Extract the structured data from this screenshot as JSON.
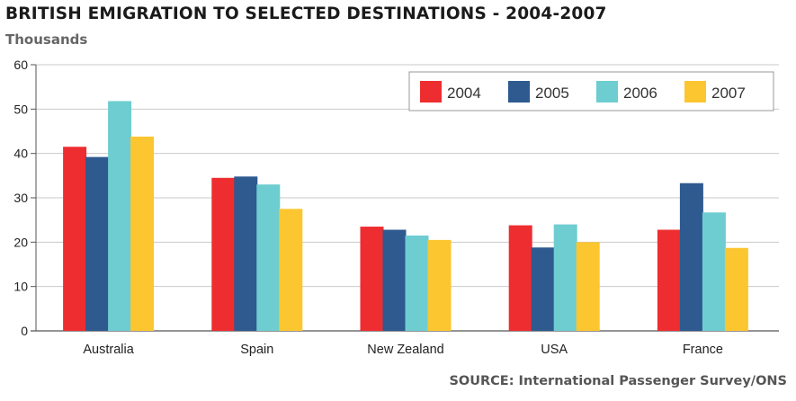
{
  "chart_data": {
    "type": "bar",
    "title": "BRITISH EMIGRATION TO SELECTED DESTINATIONS - 2004-2007",
    "ylabel": "Thousands",
    "xlabel": "",
    "source": "SOURCE: International Passenger Survey/ONS",
    "ylim": [
      0,
      60
    ],
    "yticks": [
      0,
      10,
      20,
      30,
      40,
      50,
      60
    ],
    "grid": true,
    "legend_position": "top-right",
    "categories": [
      "Australia",
      "Spain",
      "New Zealand",
      "USA",
      "France"
    ],
    "series": [
      {
        "name": "2004",
        "color": "#ee2d30",
        "values": [
          41.5,
          34.5,
          23.5,
          23.8,
          22.8
        ]
      },
      {
        "name": "2005",
        "color": "#2e5a8f",
        "values": [
          39.2,
          34.8,
          22.8,
          18.8,
          33.3
        ]
      },
      {
        "name": "2006",
        "color": "#6dcdd0",
        "values": [
          51.8,
          33.0,
          21.5,
          24.0,
          26.7
        ]
      },
      {
        "name": "2007",
        "color": "#fcc630",
        "values": [
          43.8,
          27.5,
          20.5,
          20.0,
          18.7
        ]
      }
    ]
  }
}
